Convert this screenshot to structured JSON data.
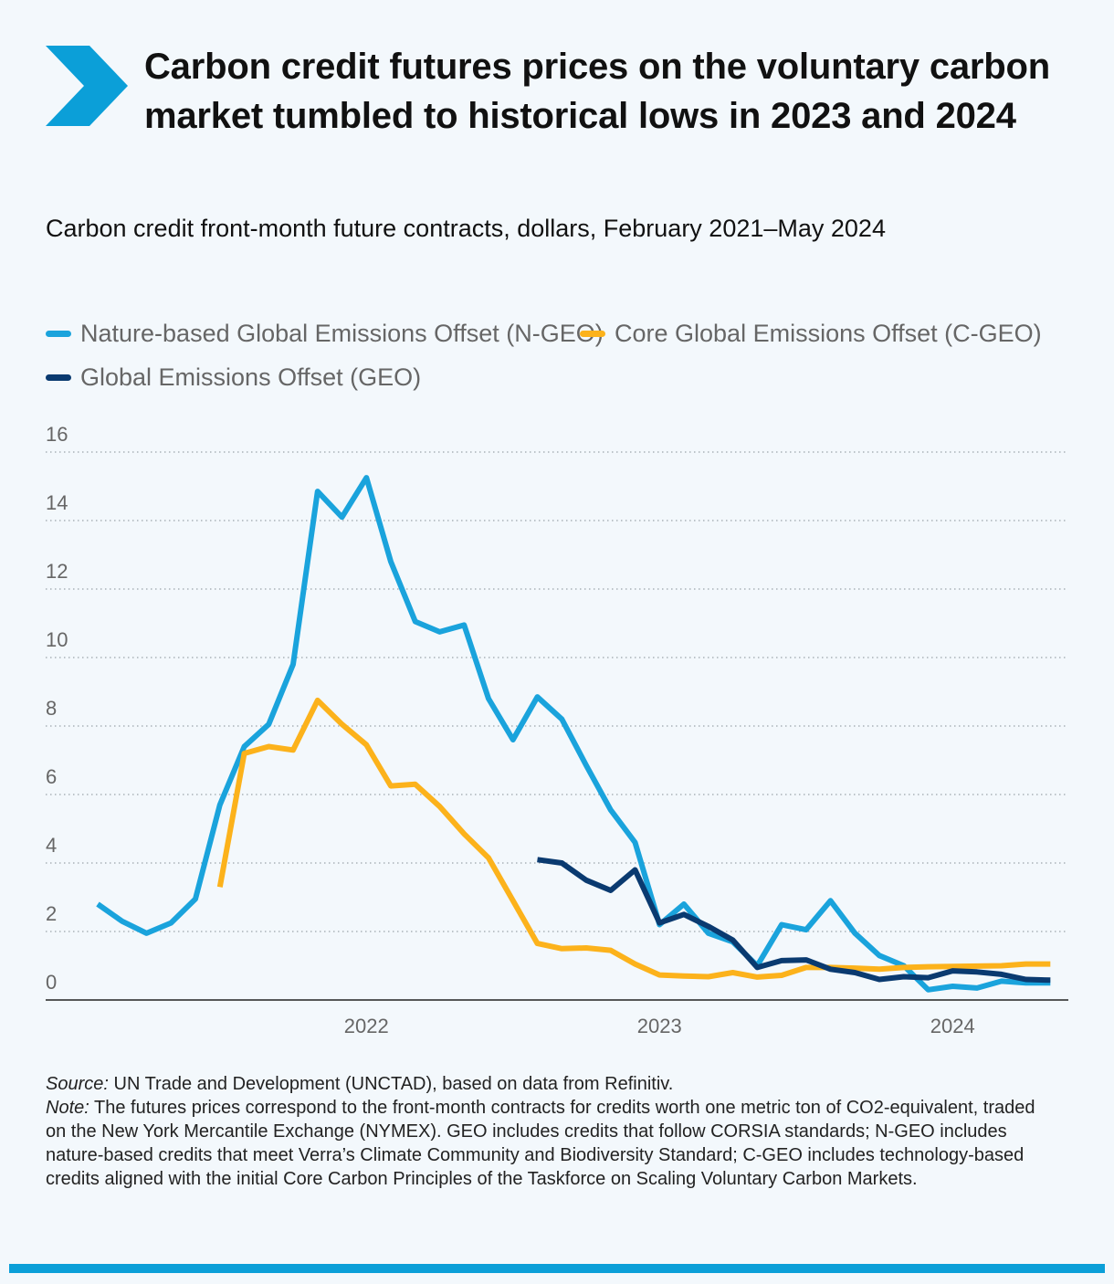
{
  "title": "Carbon credit futures prices on the voluntary carbon market tumbled to historical lows in 2023 and 2024",
  "subtitle": "Carbon credit front-month future contracts, dollars, February 2021–May 2024",
  "colors": {
    "accent": "#0b9fd8",
    "ngeo": "#1aa3dc",
    "cgeo": "#fcb21b",
    "geo": "#0a3a70",
    "background": "#f3f8fc"
  },
  "legend": [
    {
      "label": "Nature-based Global Emissions Offset (N-GEO)",
      "color": "#1aa3dc"
    },
    {
      "label": "Core Global Emissions Offset (C-GEO)",
      "color": "#fcb21b"
    },
    {
      "label": "Global Emissions Offset (GEO)",
      "color": "#0a3a70"
    }
  ],
  "chart_data": {
    "type": "line",
    "x_unit": "month",
    "ylim": [
      0,
      16
    ],
    "y_ticks": [
      "0",
      "2",
      "4",
      "6",
      "8",
      "10",
      "12",
      "14",
      "16"
    ],
    "x_ticks": [
      "2022",
      "2023",
      "2024"
    ],
    "grid": true,
    "legend_position": "top",
    "series": [
      {
        "name": "Nature-based Global Emissions Offset (N-GEO)",
        "color": "#1aa3dc",
        "start": "2021-02",
        "values": [
          2.8,
          2.3,
          1.95,
          2.25,
          2.95,
          5.7,
          7.4,
          8.05,
          9.8,
          14.85,
          14.1,
          15.25,
          12.8,
          11.05,
          10.75,
          10.95,
          8.8,
          7.6,
          8.85,
          8.2,
          6.85,
          5.55,
          4.6,
          2.2,
          2.8,
          1.95,
          1.7,
          1.0,
          2.2,
          2.05,
          2.9,
          1.95,
          1.3,
          1.0,
          0.3,
          0.4,
          0.35,
          0.55,
          0.5,
          0.5
        ]
      },
      {
        "name": "Core Global Emissions Offset (C-GEO)",
        "color": "#fcb21b",
        "start": "2021-07",
        "values": [
          3.3,
          7.2,
          7.4,
          7.3,
          8.75,
          8.05,
          7.45,
          6.25,
          6.3,
          5.65,
          4.85,
          4.15,
          2.9,
          1.65,
          1.5,
          1.52,
          1.45,
          1.05,
          0.73,
          0.7,
          0.68,
          0.8,
          0.67,
          0.72,
          0.95,
          0.95,
          0.93,
          0.9,
          0.95,
          0.97,
          0.98,
          0.99,
          1.0,
          1.05,
          1.05
        ]
      },
      {
        "name": "Global Emissions Offset (GEO)",
        "color": "#0a3a70",
        "start": "2022-08",
        "values": [
          4.1,
          4.0,
          3.5,
          3.2,
          3.8,
          2.25,
          2.5,
          2.15,
          1.75,
          0.95,
          1.15,
          1.17,
          0.9,
          0.8,
          0.6,
          0.68,
          0.65,
          0.85,
          0.82,
          0.75,
          0.6,
          0.58
        ]
      }
    ]
  },
  "source_label": "Source:",
  "source_text": "UN Trade and Development (UNCTAD), based on data from Refinitiv.",
  "note_label": "Note:",
  "note_text": "The futures prices correspond to the front-month contracts for credits worth one metric ton of CO2-equivalent, traded on the New York Mercantile Exchange (NYMEX). GEO includes credits that follow CORSIA standards; N-GEO includes nature-based credits that meet Verra’s Climate Community and Biodiversity Standard; C-GEO includes technology-based credits aligned with the initial Core Carbon Principles of the Taskforce on Scaling Voluntary Carbon Markets."
}
